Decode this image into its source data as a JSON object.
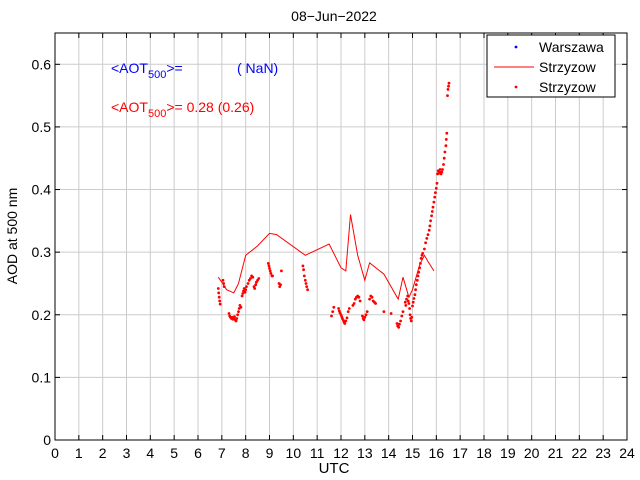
{
  "chart_data": {
    "type": "scatter",
    "title": "08−Jun−2022",
    "xlabel": "UTC",
    "ylabel": "AOD at 500 nm",
    "xlim": [
      0,
      24
    ],
    "ylim": [
      0,
      0.65
    ],
    "grid": true,
    "x_ticks": [
      "0",
      "1",
      "2",
      "3",
      "4",
      "5",
      "6",
      "7",
      "8",
      "9",
      "10",
      "11",
      "12",
      "13",
      "14",
      "15",
      "16",
      "17",
      "18",
      "19",
      "20",
      "21",
      "22",
      "23",
      "24"
    ],
    "y_ticks": [
      "0",
      "0.1",
      "0.2",
      "0.3",
      "0.4",
      "0.5",
      "0.6"
    ],
    "legend_position": "top-right",
    "legend": [
      {
        "label": "Warszawa",
        "marker": "dot",
        "color": "#0000ff"
      },
      {
        "label": "Strzyzow",
        "marker": "line",
        "color": "#ff0000"
      },
      {
        "label": "Strzyzow",
        "marker": "dot",
        "color": "#ff0000"
      }
    ],
    "annotations": {
      "warszawa": {
        "prefix": "<AOT",
        "sub": "500",
        "suffix": ">=",
        "value": "( NaN)",
        "color": "#0000ff"
      },
      "strzyzow": {
        "prefix": "<AOT",
        "sub": "500",
        "suffix": ">= 0.28 (0.26)",
        "color": "#ff0000"
      }
    },
    "series": [
      {
        "name": "Strzyzow",
        "type": "line",
        "color": "#ff0000",
        "points": [
          [
            6.85,
            0.26
          ],
          [
            7.0,
            0.252
          ],
          [
            7.2,
            0.24
          ],
          [
            7.5,
            0.235
          ],
          [
            7.7,
            0.25
          ],
          [
            8.0,
            0.295
          ],
          [
            8.5,
            0.31
          ],
          [
            9.0,
            0.33
          ],
          [
            9.3,
            0.328
          ],
          [
            10.5,
            0.295
          ],
          [
            11.5,
            0.313
          ],
          [
            12.0,
            0.275
          ],
          [
            12.2,
            0.27
          ],
          [
            12.4,
            0.36
          ],
          [
            12.7,
            0.295
          ],
          [
            13.0,
            0.255
          ],
          [
            13.2,
            0.283
          ],
          [
            13.8,
            0.265
          ],
          [
            14.4,
            0.225
          ],
          [
            14.6,
            0.26
          ],
          [
            14.85,
            0.228
          ],
          [
            15.0,
            0.24
          ],
          [
            15.3,
            0.28
          ],
          [
            15.5,
            0.295
          ],
          [
            15.65,
            0.285
          ],
          [
            15.9,
            0.27
          ]
        ]
      },
      {
        "name": "Strzyzow",
        "type": "scatter",
        "color": "#ff0000",
        "points": [
          [
            6.85,
            0.242
          ],
          [
            6.87,
            0.235
          ],
          [
            6.89,
            0.228
          ],
          [
            6.91,
            0.222
          ],
          [
            6.93,
            0.217
          ],
          [
            7.05,
            0.255
          ],
          [
            7.08,
            0.25
          ],
          [
            7.1,
            0.245
          ],
          [
            7.3,
            0.202
          ],
          [
            7.33,
            0.198
          ],
          [
            7.36,
            0.196
          ],
          [
            7.4,
            0.194
          ],
          [
            7.43,
            0.196
          ],
          [
            7.46,
            0.193
          ],
          [
            7.5,
            0.195
          ],
          [
            7.53,
            0.197
          ],
          [
            7.56,
            0.192
          ],
          [
            7.6,
            0.19
          ],
          [
            7.63,
            0.194
          ],
          [
            7.66,
            0.2
          ],
          [
            7.7,
            0.205
          ],
          [
            7.73,
            0.21
          ],
          [
            7.76,
            0.215
          ],
          [
            7.8,
            0.212
          ],
          [
            7.85,
            0.23
          ],
          [
            7.88,
            0.234
          ],
          [
            7.91,
            0.238
          ],
          [
            7.94,
            0.242
          ],
          [
            7.97,
            0.236
          ],
          [
            8.0,
            0.24
          ],
          [
            8.03,
            0.245
          ],
          [
            8.1,
            0.25
          ],
          [
            8.15,
            0.255
          ],
          [
            8.2,
            0.258
          ],
          [
            8.25,
            0.262
          ],
          [
            8.3,
            0.26
          ],
          [
            8.35,
            0.245
          ],
          [
            8.38,
            0.242
          ],
          [
            8.42,
            0.248
          ],
          [
            8.45,
            0.252
          ],
          [
            8.5,
            0.255
          ],
          [
            8.55,
            0.258
          ],
          [
            8.95,
            0.282
          ],
          [
            8.98,
            0.278
          ],
          [
            9.0,
            0.274
          ],
          [
            9.03,
            0.27
          ],
          [
            9.06,
            0.266
          ],
          [
            9.1,
            0.262
          ],
          [
            9.13,
            0.262
          ],
          [
            9.4,
            0.25
          ],
          [
            9.43,
            0.245
          ],
          [
            9.46,
            0.248
          ],
          [
            9.5,
            0.27
          ],
          [
            10.4,
            0.278
          ],
          [
            10.43,
            0.272
          ],
          [
            10.46,
            0.262
          ],
          [
            10.5,
            0.255
          ],
          [
            10.53,
            0.25
          ],
          [
            10.56,
            0.245
          ],
          [
            10.6,
            0.24
          ],
          [
            11.6,
            0.198
          ],
          [
            11.65,
            0.205
          ],
          [
            11.7,
            0.212
          ],
          [
            11.9,
            0.21
          ],
          [
            11.93,
            0.206
          ],
          [
            11.96,
            0.203
          ],
          [
            12.0,
            0.2
          ],
          [
            12.03,
            0.197
          ],
          [
            12.06,
            0.194
          ],
          [
            12.1,
            0.191
          ],
          [
            12.13,
            0.188
          ],
          [
            12.16,
            0.186
          ],
          [
            12.2,
            0.19
          ],
          [
            12.25,
            0.195
          ],
          [
            12.3,
            0.205
          ],
          [
            12.35,
            0.21
          ],
          [
            12.5,
            0.215
          ],
          [
            12.55,
            0.218
          ],
          [
            12.6,
            0.225
          ],
          [
            12.65,
            0.228
          ],
          [
            12.7,
            0.23
          ],
          [
            12.75,
            0.228
          ],
          [
            12.8,
            0.222
          ],
          [
            12.9,
            0.198
          ],
          [
            12.93,
            0.194
          ],
          [
            12.96,
            0.192
          ],
          [
            13.0,
            0.196
          ],
          [
            13.05,
            0.2
          ],
          [
            13.1,
            0.205
          ],
          [
            13.2,
            0.225
          ],
          [
            13.25,
            0.23
          ],
          [
            13.3,
            0.228
          ],
          [
            13.35,
            0.222
          ],
          [
            13.4,
            0.22
          ],
          [
            13.45,
            0.218
          ],
          [
            13.8,
            0.205
          ],
          [
            14.1,
            0.202
          ],
          [
            14.35,
            0.186
          ],
          [
            14.38,
            0.182
          ],
          [
            14.42,
            0.18
          ],
          [
            14.45,
            0.185
          ],
          [
            14.5,
            0.19
          ],
          [
            14.55,
            0.198
          ],
          [
            14.6,
            0.205
          ],
          [
            14.7,
            0.22
          ],
          [
            14.72,
            0.215
          ],
          [
            14.75,
            0.225
          ],
          [
            14.8,
            0.23
          ],
          [
            14.82,
            0.222
          ],
          [
            14.85,
            0.218
          ],
          [
            14.88,
            0.21
          ],
          [
            14.9,
            0.2
          ],
          [
            14.92,
            0.194
          ],
          [
            14.95,
            0.19
          ],
          [
            14.97,
            0.196
          ],
          [
            15.0,
            0.214
          ],
          [
            15.03,
            0.22
          ],
          [
            15.06,
            0.226
          ],
          [
            15.1,
            0.232
          ],
          [
            15.13,
            0.24
          ],
          [
            15.16,
            0.248
          ],
          [
            15.2,
            0.255
          ],
          [
            15.23,
            0.262
          ],
          [
            15.26,
            0.268
          ],
          [
            15.3,
            0.275
          ],
          [
            15.33,
            0.282
          ],
          [
            15.36,
            0.29
          ],
          [
            15.4,
            0.295
          ],
          [
            15.43,
            0.298
          ],
          [
            15.5,
            0.305
          ],
          [
            15.55,
            0.315
          ],
          [
            15.6,
            0.322
          ],
          [
            15.65,
            0.328
          ],
          [
            15.7,
            0.335
          ],
          [
            15.73,
            0.342
          ],
          [
            15.76,
            0.35
          ],
          [
            15.8,
            0.358
          ],
          [
            15.83,
            0.365
          ],
          [
            15.86,
            0.372
          ],
          [
            15.9,
            0.38
          ],
          [
            15.93,
            0.388
          ],
          [
            15.96,
            0.395
          ],
          [
            16.0,
            0.402
          ],
          [
            16.03,
            0.41
          ],
          [
            16.05,
            0.425
          ],
          [
            16.08,
            0.43
          ],
          [
            16.1,
            0.426
          ],
          [
            16.13,
            0.428
          ],
          [
            16.16,
            0.432
          ],
          [
            16.2,
            0.425
          ],
          [
            16.23,
            0.428
          ],
          [
            16.26,
            0.432
          ],
          [
            16.3,
            0.44
          ],
          [
            16.33,
            0.45
          ],
          [
            16.36,
            0.46
          ],
          [
            16.4,
            0.47
          ],
          [
            16.42,
            0.48
          ],
          [
            16.44,
            0.49
          ],
          [
            16.47,
            0.55
          ],
          [
            16.49,
            0.56
          ],
          [
            16.51,
            0.565
          ],
          [
            16.53,
            0.57
          ]
        ]
      },
      {
        "name": "Warszawa",
        "type": "scatter",
        "color": "#0000ff",
        "points": []
      }
    ]
  }
}
